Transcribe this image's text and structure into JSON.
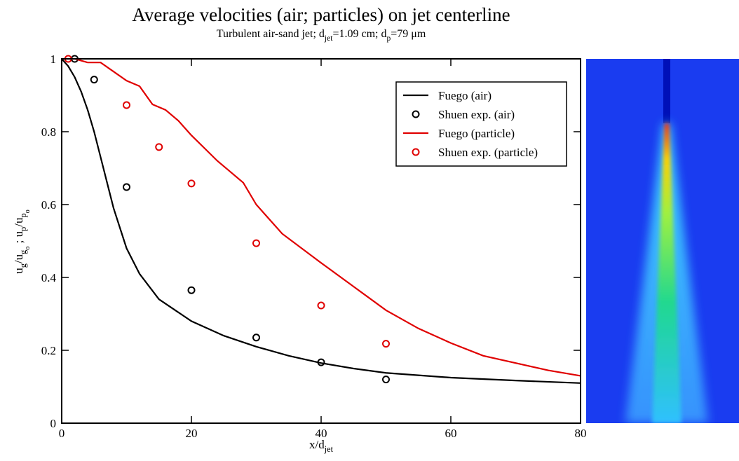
{
  "chart_data": {
    "type": "line",
    "title": "Average velocities (air; particles) on jet centerline",
    "subtitle": [
      {
        "text": "Turbulent air-sand jet; d"
      },
      {
        "text": "jet",
        "level": 1
      },
      {
        "text": "=1.09 cm; d"
      },
      {
        "text": "p",
        "level": 1
      },
      {
        "text": "=79 μm"
      }
    ],
    "xlabel": [
      {
        "text": "x/d"
      },
      {
        "text": "jet",
        "level": 1
      }
    ],
    "ylabel": [
      {
        "text": "u"
      },
      {
        "text": "g",
        "level": 1
      },
      {
        "text": "/u"
      },
      {
        "text": "g",
        "level": 1
      },
      {
        "text": "o",
        "level": 2
      },
      {
        "text": " ; u"
      },
      {
        "text": "p",
        "level": 1
      },
      {
        "text": "/u"
      },
      {
        "text": "p",
        "level": 1
      },
      {
        "text": "o",
        "level": 2
      }
    ],
    "xlim": [
      0,
      80
    ],
    "xticks": [
      0,
      20,
      40,
      60,
      80
    ],
    "ylim": [
      0,
      1
    ],
    "yticks": [
      0,
      0.2,
      0.4,
      0.6,
      0.8,
      1
    ],
    "legend": "upper right",
    "series": [
      {
        "name": "Fuego (air)",
        "color": "#000000",
        "type": "line",
        "x": [
          0,
          1,
          2,
          3,
          4,
          5,
          6,
          7,
          8,
          10,
          12,
          15,
          20,
          25,
          30,
          35,
          40,
          45,
          50,
          60,
          70,
          80
        ],
        "values": [
          1,
          0.98,
          0.95,
          0.91,
          0.86,
          0.8,
          0.73,
          0.66,
          0.59,
          0.48,
          0.41,
          0.34,
          0.28,
          0.24,
          0.21,
          0.185,
          0.165,
          0.15,
          0.138,
          0.125,
          0.117,
          0.11
        ]
      },
      {
        "name": "Shuen exp. (air)",
        "color": "#000000",
        "type": "scatter",
        "x": [
          2,
          5,
          10,
          20,
          30,
          40,
          50
        ],
        "values": [
          1.0,
          0.943,
          0.648,
          0.365,
          0.235,
          0.167,
          0.12
        ]
      },
      {
        "name": "Fuego (particle)",
        "color": "#e00000",
        "type": "line",
        "x": [
          0,
          2,
          4,
          6,
          8,
          10,
          12,
          14,
          16,
          18,
          20,
          22,
          24,
          26,
          28,
          30,
          34,
          40,
          45,
          50,
          55,
          60,
          65,
          70,
          75,
          80
        ],
        "values": [
          1,
          1.0,
          0.99,
          0.99,
          0.965,
          0.94,
          0.925,
          0.875,
          0.86,
          0.83,
          0.79,
          0.755,
          0.72,
          0.69,
          0.66,
          0.6,
          0.52,
          0.44,
          0.375,
          0.31,
          0.26,
          0.22,
          0.185,
          0.165,
          0.145,
          0.13
        ]
      },
      {
        "name": "Shuen exp. (particle)",
        "color": "#e00000",
        "type": "scatter",
        "x": [
          1,
          10,
          15,
          20,
          30,
          40,
          50
        ],
        "values": [
          1.0,
          0.873,
          0.758,
          0.658,
          0.494,
          0.323,
          0.218
        ]
      }
    ]
  }
}
